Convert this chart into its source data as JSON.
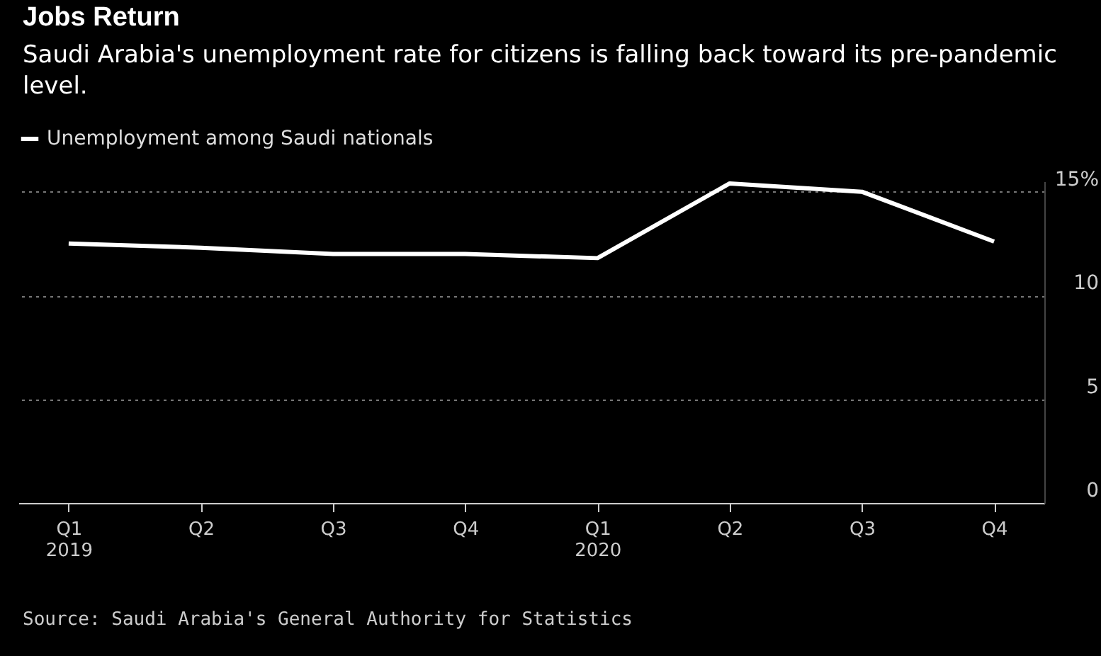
{
  "chart_data": {
    "type": "line",
    "title": "Jobs Return",
    "subtitle": "Saudi Arabia's unemployment rate for citizens is falling back toward its pre-pandemic level.",
    "categories": [
      "Q1\n2019",
      "Q2",
      "Q3",
      "Q4",
      "Q1\n2020",
      "Q2",
      "Q3",
      "Q4"
    ],
    "series": [
      {
        "name": "Unemployment among Saudi nationals",
        "color": "#ffffff",
        "values": [
          12.5,
          12.3,
          12.0,
          12.0,
          11.8,
          15.4,
          15.0,
          12.6
        ]
      }
    ],
    "ylim": [
      0,
      15.5
    ],
    "yticks": [
      0,
      5,
      10,
      {
        "value": 15,
        "label": "15%"
      }
    ],
    "grid": "y",
    "legend": "top left",
    "line_style": "solid",
    "annotations": [
      "Source: Saudi Arabia's General Authority for Statistics"
    ]
  }
}
